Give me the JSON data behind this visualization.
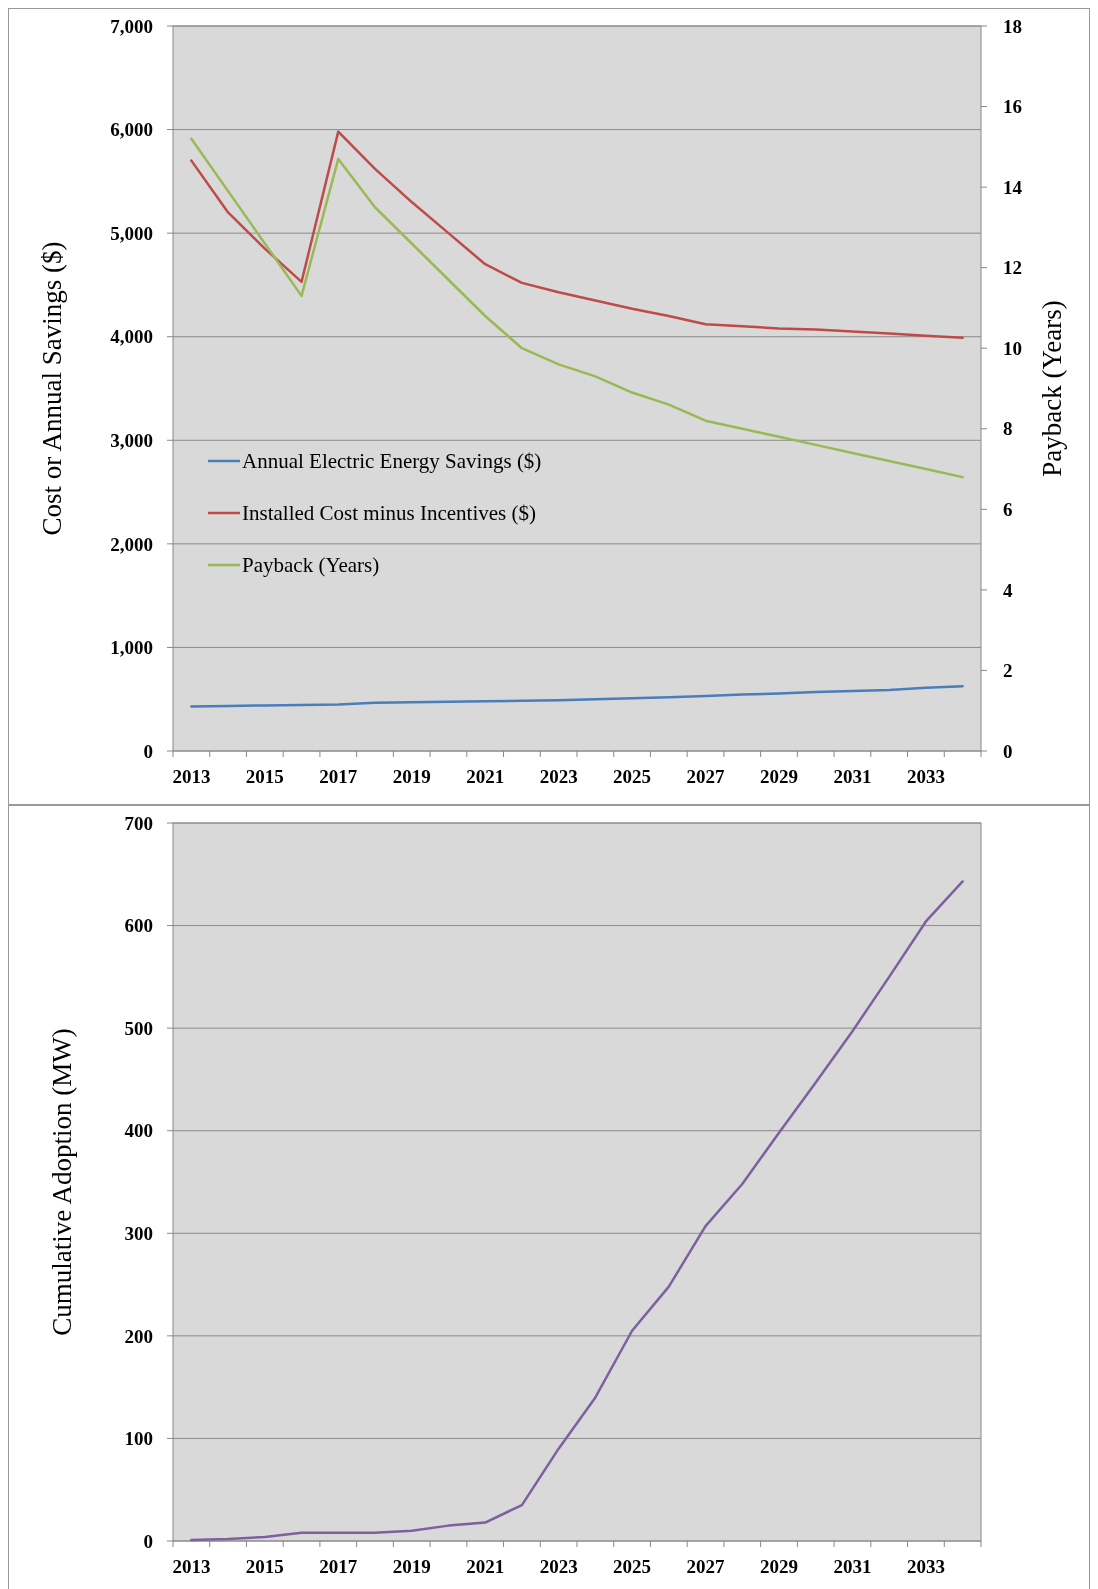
{
  "chart_data": [
    {
      "type": "line",
      "ylabel": "Cost or Annual Savings ($)",
      "y2label": "Payback (Years)",
      "categories": [
        "2013",
        null,
        "2015",
        null,
        "2017",
        null,
        "2019",
        null,
        "2021",
        null,
        "2023",
        null,
        "2025",
        null,
        "2027",
        null,
        "2029",
        null,
        "2031",
        null,
        "2033",
        null
      ],
      "series": [
        {
          "name": "Annual Electric Energy Savings ($)",
          "color": "#4a7ebb",
          "values": [
            430,
            435,
            440,
            445,
            450,
            465,
            470,
            475,
            480,
            485,
            490,
            500,
            510,
            520,
            530,
            545,
            555,
            570,
            580,
            590,
            610,
            625
          ]
        },
        {
          "name": "Installed Cost minus Incentives ($)",
          "color": "#be4b48",
          "values": [
            5700,
            5200,
            4850,
            4530,
            5980,
            5620,
            5300,
            5000,
            4700,
            4520,
            4430,
            4350,
            4270,
            4200,
            4120,
            4100,
            4080,
            4070,
            4050,
            4030,
            4010,
            3990
          ]
        },
        {
          "name": "Payback (Years)",
          "color": "#98b954",
          "axis": "y2",
          "values": [
            15.2,
            13.9,
            12.6,
            11.3,
            14.7,
            13.5,
            12.6,
            11.7,
            10.8,
            10.0,
            9.6,
            9.3,
            8.9,
            8.6,
            8.2,
            8.0,
            7.8,
            7.6,
            7.4,
            7.2,
            7.0,
            6.8
          ]
        }
      ],
      "ylim": [
        0,
        7000
      ],
      "yticks": [
        0,
        {
          "value": 1000,
          "label": "1,000"
        },
        {
          "value": 2000,
          "label": "2,000"
        },
        {
          "value": 3000,
          "label": "3,000"
        },
        {
          "value": 4000,
          "label": "4,000"
        },
        {
          "value": 5000,
          "label": "5,000"
        },
        {
          "value": 6000,
          "label": "6,000"
        },
        {
          "value": 7000,
          "label": "7,000"
        }
      ],
      "y2lim": [
        0,
        18
      ],
      "y2ticks": [
        0,
        2,
        4,
        6,
        8,
        10,
        12,
        14,
        16,
        18
      ],
      "grid": "y",
      "legend": "left"
    },
    {
      "type": "line",
      "ylabel": "Cumulative Adoption (MW)",
      "categories": [
        "2013",
        null,
        "2015",
        null,
        "2017",
        null,
        "2019",
        null,
        "2021",
        null,
        "2023",
        null,
        "2025",
        null,
        "2027",
        null,
        "2029",
        null,
        "2031",
        null,
        "2033",
        null
      ],
      "values": [
        1,
        2,
        4,
        8,
        8,
        8,
        10,
        15,
        18,
        35,
        90,
        140,
        205,
        248,
        307,
        348,
        398,
        447,
        497,
        550,
        604,
        643
      ],
      "color": "#7d60a0",
      "ylim": [
        0,
        700
      ],
      "yticks": [
        0,
        100,
        200,
        300,
        400,
        500,
        600,
        700
      ],
      "grid": "y"
    }
  ]
}
